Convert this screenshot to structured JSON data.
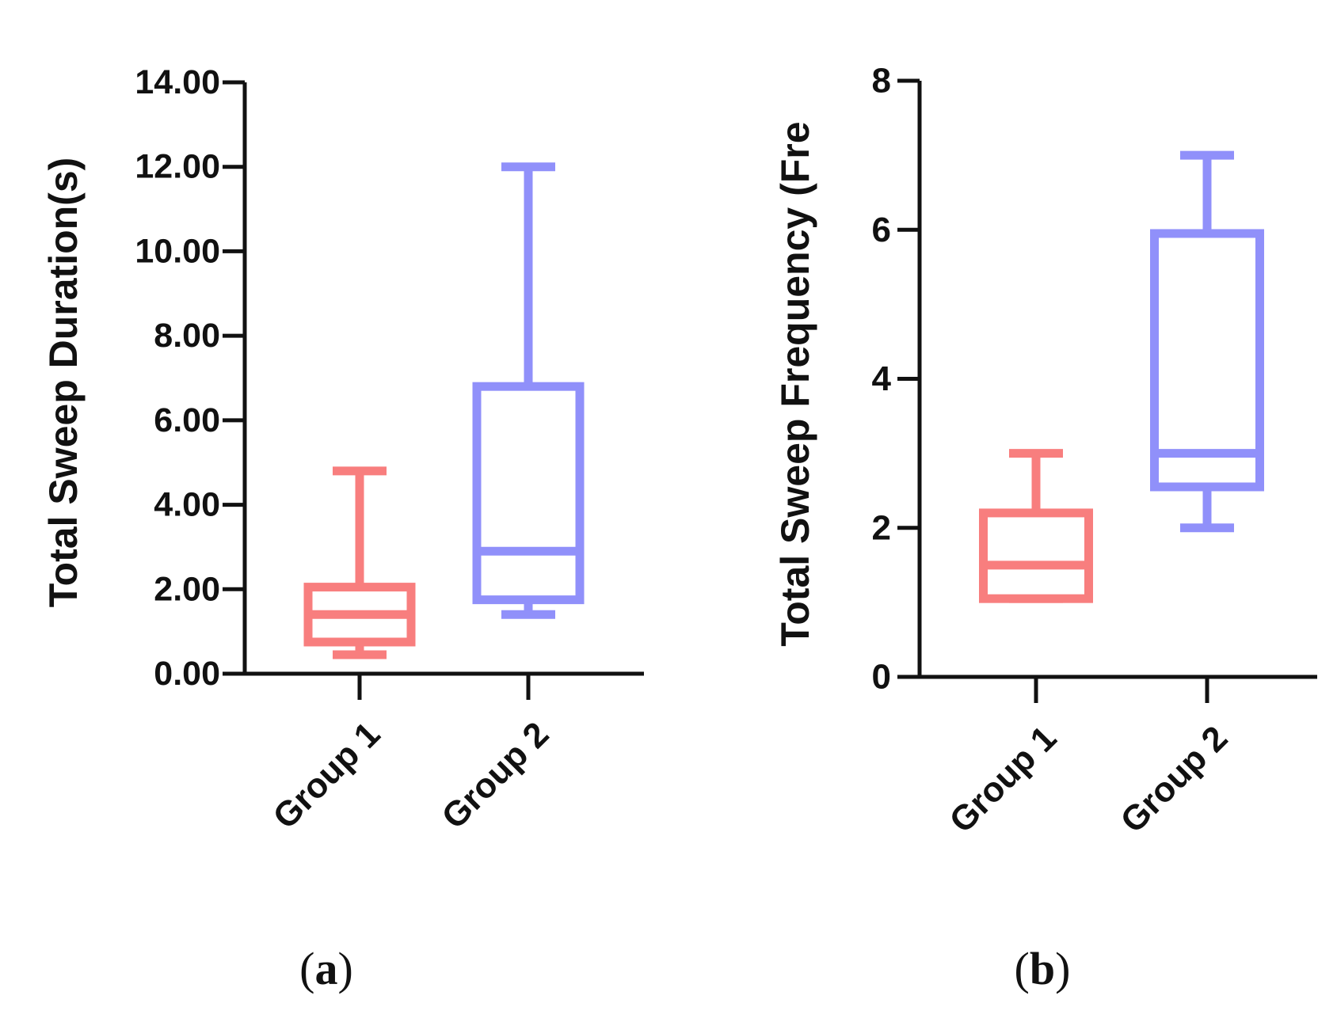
{
  "chart_data": [
    {
      "type": "boxplot",
      "panel_label": "a",
      "ylabel": "Total Sweep Duration(s)",
      "ylim": [
        0,
        14
      ],
      "yticks": [
        "0.00",
        "2.00",
        "4.00",
        "6.00",
        "8.00",
        "10.00",
        "12.00",
        "14.00"
      ],
      "categories": [
        "Group 1",
        "Group 2"
      ],
      "series": [
        {
          "name": "Group 1",
          "color": "#f87e7e",
          "min": 0.45,
          "q1": 0.75,
          "median": 1.4,
          "q3": 2.05,
          "max": 4.8
        },
        {
          "name": "Group 2",
          "color": "#9090fa",
          "min": 1.4,
          "q1": 1.75,
          "median": 2.9,
          "q3": 6.8,
          "max": 12.0
        }
      ]
    },
    {
      "type": "boxplot",
      "panel_label": "b",
      "ylabel": "Total Sweep Frequency (Fre",
      "ylim": [
        0,
        8
      ],
      "yticks": [
        "0",
        "2",
        "4",
        "6",
        "8"
      ],
      "categories": [
        "Group 1",
        "Group 2"
      ],
      "series": [
        {
          "name": "Group 1",
          "color": "#f87e7e",
          "min": 1.05,
          "q1": 1.05,
          "median": 1.5,
          "q3": 2.2,
          "max": 3.0
        },
        {
          "name": "Group 2",
          "color": "#9090fa",
          "min": 2.0,
          "q1": 2.55,
          "median": 3.0,
          "q3": 5.95,
          "max": 7.0
        }
      ]
    }
  ]
}
